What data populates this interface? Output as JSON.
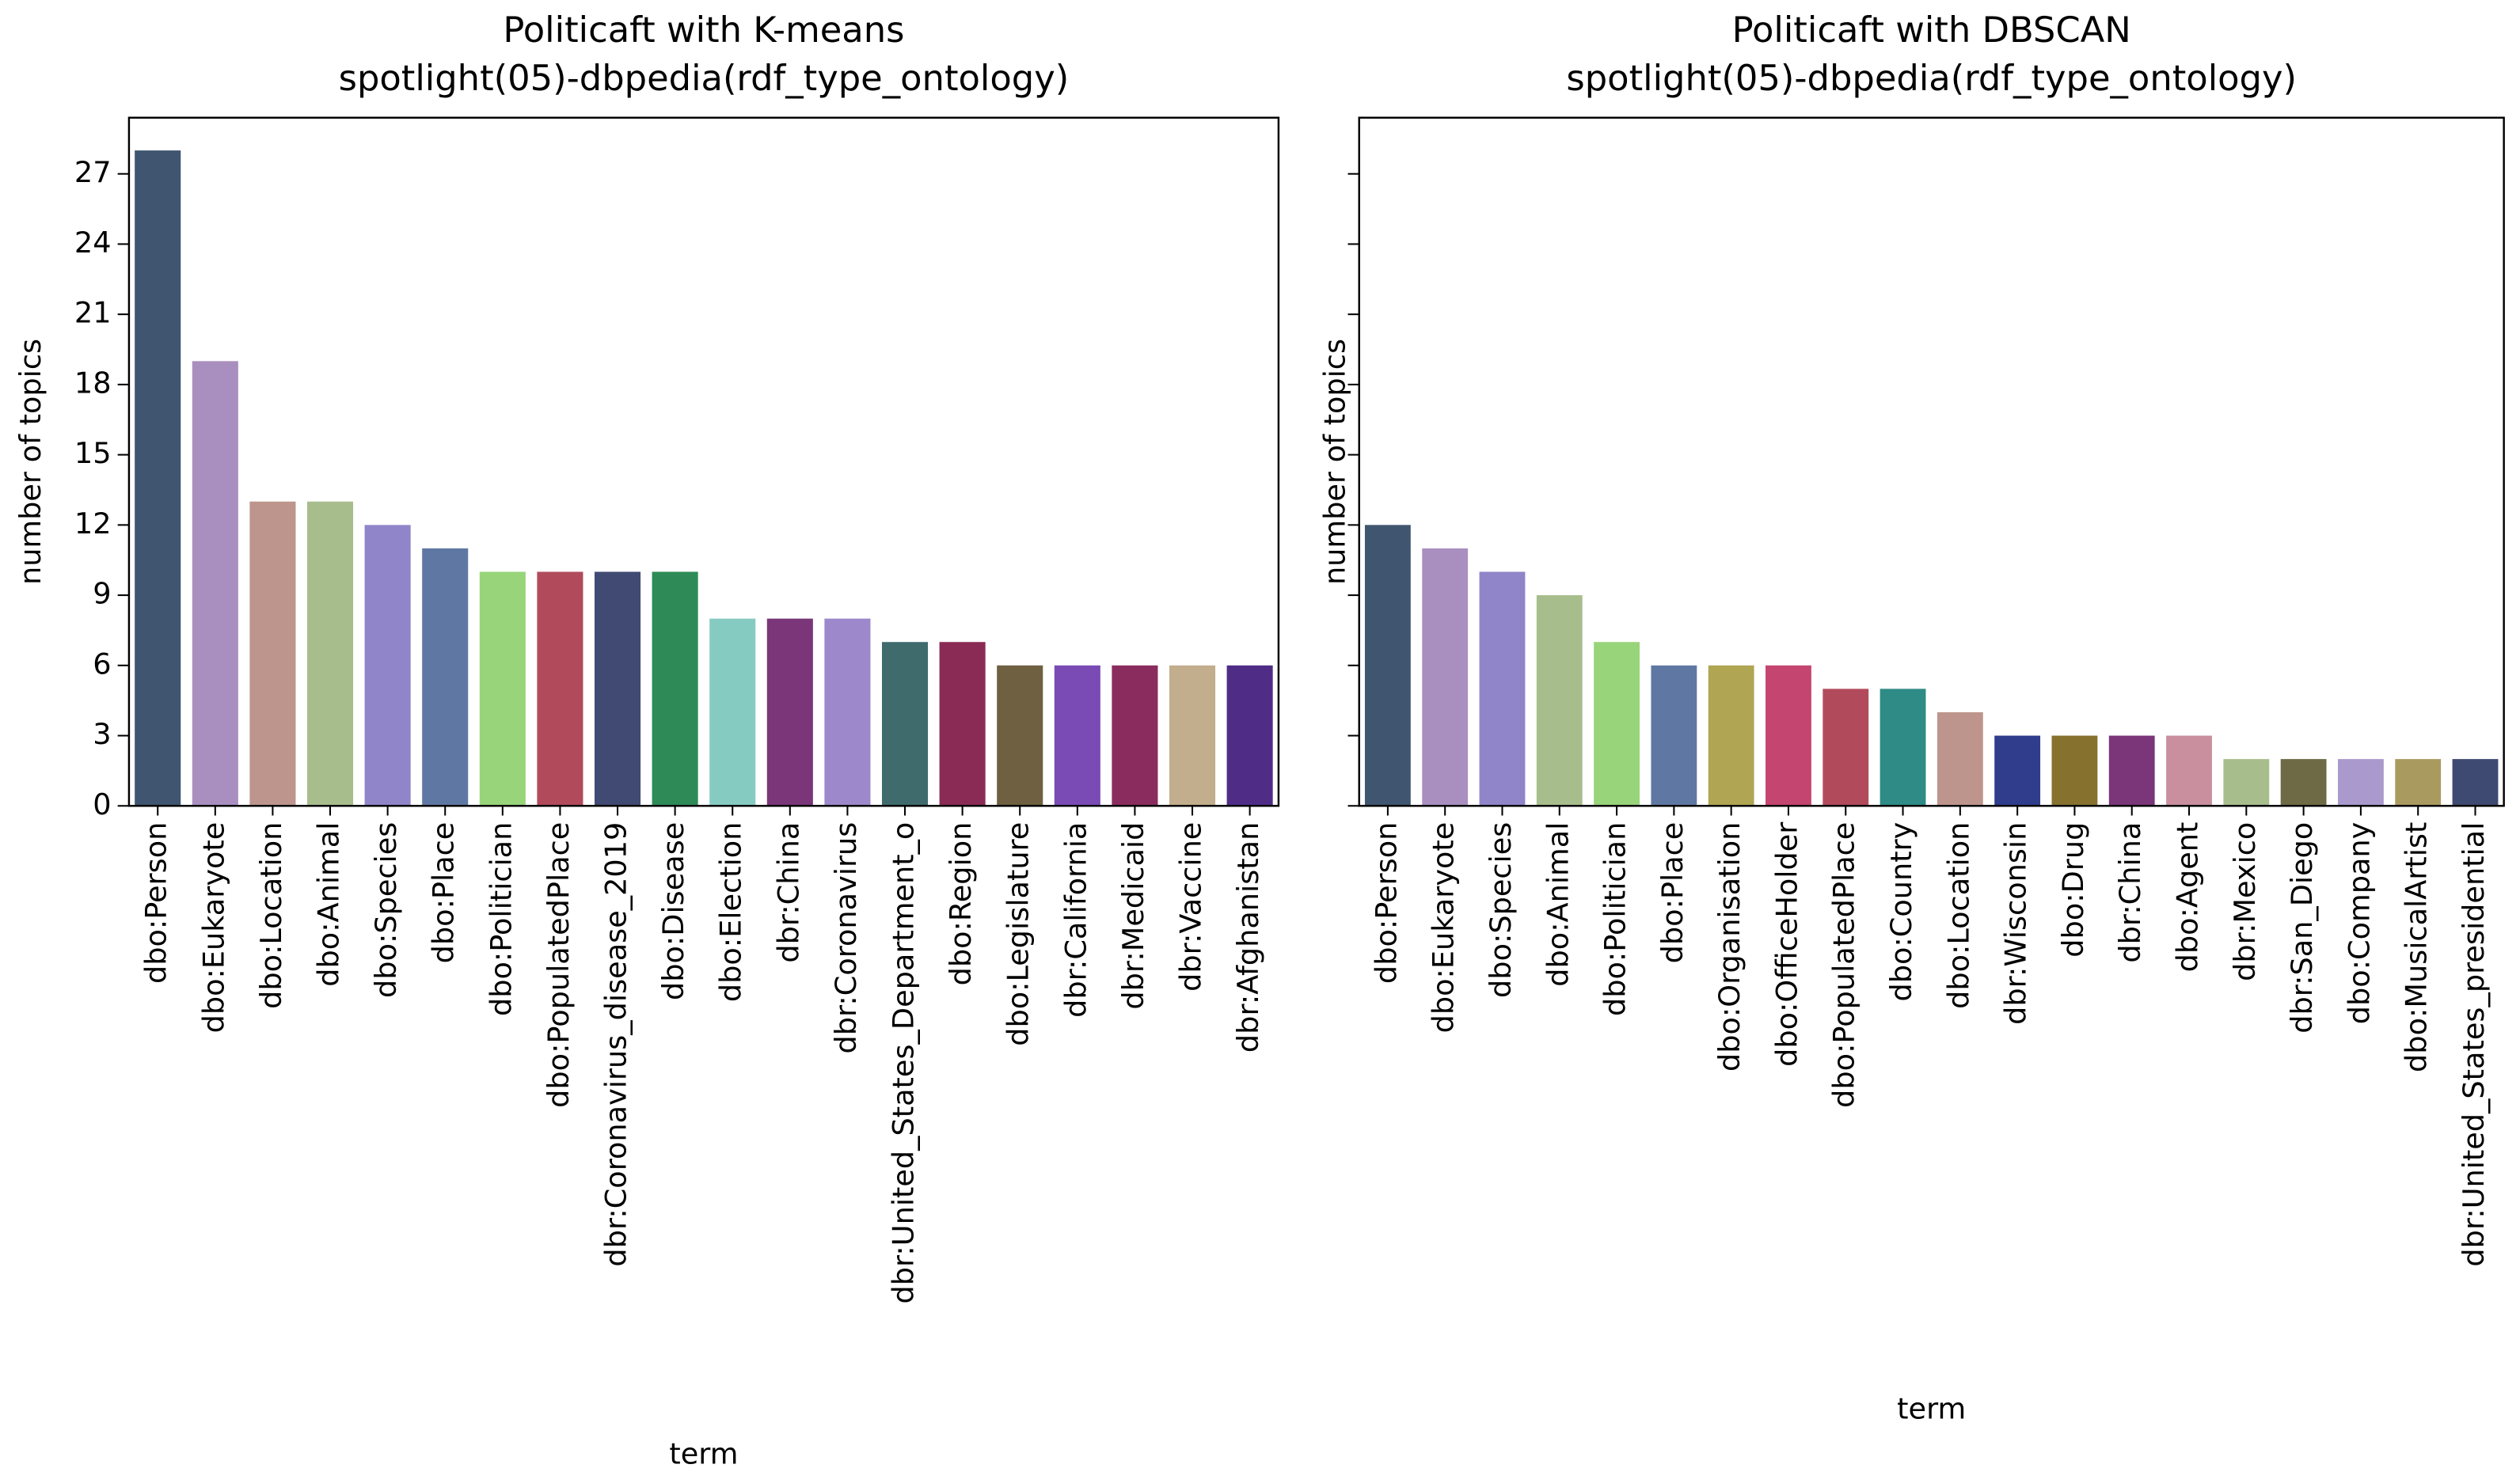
{
  "chart_data": [
    {
      "type": "bar",
      "title": "Politicaft with K-means",
      "subtitle": "spotlight(05)-dbpedia(rdf_type_ontology)",
      "xlabel": "term",
      "ylabel": "number of topics",
      "categories": [
        "dbo:Person",
        "dbo:Eukaryote",
        "dbo:Location",
        "dbo:Animal",
        "dbo:Species",
        "dbo:Place",
        "dbo:Politician",
        "dbo:PopulatedPlace",
        "dbr:Coronavirus_disease_2019",
        "dbo:Disease",
        "dbo:Election",
        "dbr:China",
        "dbr:Coronavirus",
        "dbr:United_States_Department_o",
        "dbo:Region",
        "dbo:Legislature",
        "dbr:California",
        "dbr:Medicaid",
        "dbr:Vaccine",
        "dbr:Afghanistan"
      ],
      "values": [
        28,
        19,
        13,
        13,
        12,
        11,
        10,
        10,
        10,
        10,
        8,
        8,
        8,
        7,
        7,
        6,
        6,
        6,
        6,
        6
      ],
      "colors": [
        "#3f5570",
        "#a98fc0",
        "#bd958c",
        "#a8bd8c",
        "#8f85c8",
        "#5f78a3",
        "#98d47a",
        "#b14b5c",
        "#414a72",
        "#2e8b57",
        "#86cbc2",
        "#7a3679",
        "#9e88cc",
        "#3f6b6d",
        "#8a2b55",
        "#6e6040",
        "#7a4bb5",
        "#8b2c5f",
        "#c2ad8c",
        "#4f2d87"
      ],
      "ylim": [
        0,
        29.4
      ],
      "yticks": [
        0,
        3,
        6,
        9,
        12,
        15,
        18,
        21,
        24,
        27
      ],
      "ytick_labels": true,
      "grid": false
    },
    {
      "type": "bar",
      "title": "Politicaft with DBSCAN",
      "subtitle": "spotlight(05)-dbpedia(rdf_type_ontology)",
      "xlabel": "term",
      "ylabel": "number of topics",
      "categories": [
        "dbo:Person",
        "dbo:Eukaryote",
        "dbo:Species",
        "dbo:Animal",
        "dbo:Politician",
        "dbo:Place",
        "dbo:Organisation",
        "dbo:OfficeHolder",
        "dbo:PopulatedPlace",
        "dbo:Country",
        "dbo:Location",
        "dbr:Wisconsin",
        "dbo:Drug",
        "dbr:China",
        "dbo:Agent",
        "dbr:Mexico",
        "dbr:San_Diego",
        "dbo:Company",
        "dbo:MusicalArtist",
        "dbr:United_States_presidential"
      ],
      "values": [
        12,
        11,
        10,
        9,
        7,
        6,
        6,
        6,
        5,
        5,
        4,
        3,
        3,
        3,
        3,
        2,
        2,
        2,
        2,
        2
      ],
      "colors": [
        "#3f5570",
        "#a98fc0",
        "#8f85c8",
        "#a8bd8c",
        "#98d47a",
        "#5f78a3",
        "#b0a553",
        "#c4456f",
        "#b14b5c",
        "#2e8b85",
        "#bd958c",
        "#2f3d8c",
        "#86712f",
        "#7a3679",
        "#c98f9f",
        "#a8bd8c",
        "#6e6a45",
        "#a999cc",
        "#a99a5f",
        "#3f4a72"
      ],
      "ylim": [
        0,
        29.4
      ],
      "yticks": [
        0,
        3,
        6,
        9,
        12,
        15,
        18,
        21,
        24,
        27
      ],
      "ytick_labels": false,
      "grid": false
    }
  ]
}
